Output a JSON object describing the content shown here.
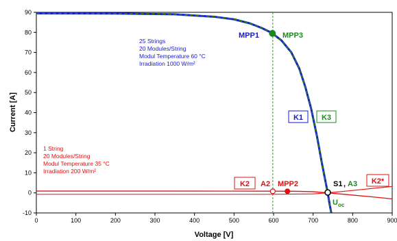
{
  "chart_data": {
    "type": "line",
    "title": "",
    "xlabel": "Voltage [V]",
    "ylabel": "Current [A]",
    "xlim": [
      0,
      900
    ],
    "ylim": [
      -10,
      90
    ],
    "xticks": [
      0,
      100,
      200,
      300,
      400,
      500,
      600,
      700,
      800,
      900
    ],
    "yticks": [
      -10,
      0,
      10,
      20,
      30,
      40,
      50,
      60,
      70,
      80,
      90
    ],
    "grid": false,
    "colors": {
      "blue": "#1a1acc",
      "green": "#1a8a1a",
      "red": "#e01010",
      "dark": "#000000"
    },
    "series": [
      {
        "key": "k1",
        "points": [
          [
            0,
            89.5
          ],
          [
            200,
            89.4
          ],
          [
            350,
            89.0
          ],
          [
            450,
            87.8
          ],
          [
            500,
            86.5
          ],
          [
            540,
            84.5
          ],
          [
            570,
            82.2
          ],
          [
            595,
            79.8
          ],
          [
            620,
            76.0
          ],
          [
            645,
            70.0
          ],
          [
            665,
            62.0
          ],
          [
            680,
            53.0
          ],
          [
            695,
            42.0
          ],
          [
            710,
            28.0
          ],
          [
            722,
            15.0
          ],
          [
            732,
            5.0
          ],
          [
            737,
            0.0
          ],
          [
            742,
            -6.0
          ],
          [
            746,
            -10.0
          ]
        ]
      },
      {
        "key": "k3",
        "points": [
          [
            0,
            89.5
          ],
          [
            200,
            89.4
          ],
          [
            350,
            89.0
          ],
          [
            450,
            87.8
          ],
          [
            500,
            86.5
          ],
          [
            540,
            84.5
          ],
          [
            570,
            82.2
          ],
          [
            595,
            79.8
          ],
          [
            620,
            76.0
          ],
          [
            645,
            70.0
          ],
          [
            665,
            62.0
          ],
          [
            680,
            53.0
          ],
          [
            695,
            42.0
          ],
          [
            710,
            28.0
          ],
          [
            722,
            15.0
          ],
          [
            732,
            5.0
          ],
          [
            737,
            0.0
          ],
          [
            742,
            -6.0
          ],
          [
            746,
            -10.0
          ]
        ]
      },
      {
        "key": "k2",
        "points": [
          [
            0,
            0.9
          ],
          [
            300,
            0.9
          ],
          [
            500,
            0.88
          ],
          [
            600,
            0.85
          ],
          [
            650,
            0.82
          ],
          [
            700,
            0.6
          ],
          [
            737,
            0.0
          ],
          [
            800,
            -1.1
          ],
          [
            860,
            -2.2
          ],
          [
            900,
            -3.0
          ]
        ]
      },
      {
        "key": "k2_star",
        "points": [
          [
            0,
            -0.7
          ],
          [
            600,
            -0.7
          ],
          [
            700,
            -0.5
          ],
          [
            737,
            0.0
          ],
          [
            780,
            0.8
          ],
          [
            840,
            2.0
          ],
          [
            900,
            3.2
          ]
        ]
      }
    ],
    "vline_x": 598,
    "points": [
      {
        "key": "mpp13",
        "x": 597,
        "y": 79.5
      },
      {
        "key": "mpp2",
        "x": 635,
        "y": 0.8
      },
      {
        "key": "a2",
        "x": 598,
        "y": 0.8
      },
      {
        "key": "s1",
        "x": 737,
        "y": 0.2
      }
    ],
    "annotations": {
      "mpp1": "MPP1",
      "mpp3": "MPP3",
      "k1": "K1",
      "k3": "K3",
      "k2": "K2",
      "k2_star": "K2*",
      "a2": "A2",
      "mpp2": "MPP2",
      "s1": "S1",
      "s1_sep": ",",
      "a3": "A3",
      "uoc_main": "U",
      "uoc_sub": "oc"
    },
    "info_blue": [
      "25 Strings",
      "20 Modules/String",
      "Modul Temperature 60 °C",
      "Irradiation 1000 W/m²"
    ],
    "info_red": [
      "1 String",
      "20 Modules/String",
      "Modul Temperature 35 °C",
      "Irradiation 200 W/m²"
    ]
  }
}
